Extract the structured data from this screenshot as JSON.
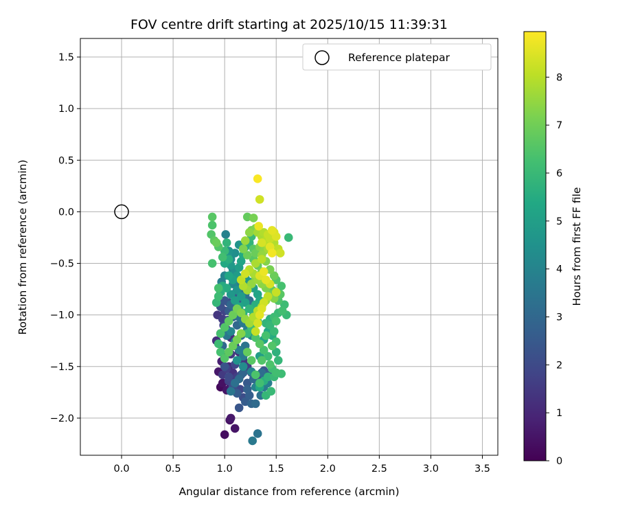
{
  "chart_data": {
    "type": "scatter",
    "title": "FOV centre drift starting at 2025/10/15 11:39:31",
    "xlabel": "Angular distance from reference (arcmin)",
    "ylabel": "Rotation from reference (arcmin)",
    "xlim": [
      -0.4,
      3.65
    ],
    "ylim": [
      -2.36,
      1.68
    ],
    "xticks": [
      "0.0",
      "0.5",
      "1.0",
      "1.5",
      "2.0",
      "2.5",
      "3.0",
      "3.5"
    ],
    "yticks": [
      "1.5",
      "1.0",
      "0.5",
      "0.0",
      "−0.5",
      "−1.0",
      "−1.5",
      "−2.0"
    ],
    "grid": true,
    "legend": {
      "label": "Reference platepar",
      "placement": "top-right"
    },
    "reference_point": {
      "x": 0.0,
      "y": 0.0
    },
    "colorbar": {
      "label": "Hours from first FF file",
      "range": [
        0,
        8.95
      ],
      "ticks": [
        "0",
        "1",
        "2",
        "3",
        "4",
        "5",
        "6",
        "7",
        "8"
      ],
      "colormap": "viridis"
    },
    "points": [
      [
        1.0,
        -2.16,
        0.3
      ],
      [
        1.05,
        -2.02,
        0.4
      ],
      [
        1.06,
        -2.0,
        0.6
      ],
      [
        1.1,
        -2.1,
        0.5
      ],
      [
        1.27,
        -2.22,
        3.6
      ],
      [
        1.32,
        -2.15,
        3.4
      ],
      [
        0.96,
        -1.7,
        0.2
      ],
      [
        0.98,
        -1.66,
        0.4
      ],
      [
        1.02,
        -1.73,
        0.5
      ],
      [
        1.06,
        -1.68,
        0.7
      ],
      [
        1.1,
        -1.64,
        0.9
      ],
      [
        0.94,
        -1.55,
        0.6
      ],
      [
        0.97,
        -1.45,
        0.8
      ],
      [
        1.0,
        -1.4,
        1.1
      ],
      [
        1.04,
        -1.5,
        1.0
      ],
      [
        1.08,
        -1.56,
        1.3
      ],
      [
        1.12,
        -1.6,
        1.6
      ],
      [
        1.15,
        -1.72,
        1.9
      ],
      [
        1.18,
        -1.8,
        2.1
      ],
      [
        1.14,
        -1.9,
        2.4
      ],
      [
        1.2,
        -1.84,
        2.6
      ],
      [
        1.26,
        -1.86,
        2.9
      ],
      [
        1.3,
        -1.86,
        3.1
      ],
      [
        1.24,
        -1.78,
        2.7
      ],
      [
        1.35,
        -1.78,
        3.3
      ],
      [
        1.38,
        -1.7,
        3.6
      ],
      [
        1.42,
        -1.66,
        3.8
      ],
      [
        1.36,
        -1.56,
        3.2
      ],
      [
        1.28,
        -1.62,
        3.0
      ],
      [
        1.22,
        -1.66,
        2.5
      ],
      [
        1.16,
        -1.58,
        2.2
      ],
      [
        1.1,
        -1.48,
        1.9
      ],
      [
        1.06,
        -1.38,
        1.5
      ],
      [
        0.92,
        -1.25,
        1.2
      ],
      [
        0.96,
        -1.18,
        1.6
      ],
      [
        0.99,
        -1.1,
        1.8
      ],
      [
        1.03,
        -1.05,
        2.0
      ],
      [
        0.93,
        -1.0,
        1.4
      ],
      [
        0.96,
        -0.92,
        2.2
      ],
      [
        1.0,
        -0.86,
        2.4
      ],
      [
        1.04,
        -0.96,
        2.6
      ],
      [
        1.08,
        -1.02,
        2.8
      ],
      [
        1.12,
        -1.1,
        3.0
      ],
      [
        1.16,
        -1.2,
        3.2
      ],
      [
        1.2,
        -1.3,
        3.4
      ],
      [
        1.18,
        -1.4,
        3.6
      ],
      [
        1.14,
        -1.34,
        3.8
      ],
      [
        1.1,
        -1.26,
        4.0
      ],
      [
        1.06,
        -1.16,
        4.1
      ],
      [
        1.02,
        -1.2,
        3.5
      ],
      [
        0.98,
        -1.3,
        3.0
      ],
      [
        1.0,
        -1.5,
        2.3
      ],
      [
        1.04,
        -1.6,
        2.0
      ],
      [
        1.08,
        -1.7,
        2.2
      ],
      [
        1.12,
        -1.76,
        2.6
      ],
      [
        1.22,
        -1.72,
        2.8
      ],
      [
        1.3,
        -1.7,
        3.9
      ],
      [
        1.26,
        -1.55,
        4.0
      ],
      [
        1.18,
        -1.5,
        4.3
      ],
      [
        1.12,
        -1.44,
        4.5
      ],
      [
        0.95,
        -0.75,
        4.2
      ],
      [
        0.97,
        -0.68,
        3.8
      ],
      [
        1.0,
        -0.62,
        4.0
      ],
      [
        1.02,
        -0.4,
        3.6
      ],
      [
        1.01,
        -0.22,
        3.9
      ],
      [
        1.04,
        -0.38,
        4.6
      ],
      [
        1.06,
        -0.52,
        4.8
      ],
      [
        1.1,
        -0.58,
        4.4
      ],
      [
        1.08,
        -0.7,
        4.2
      ],
      [
        1.12,
        -0.76,
        4.6
      ],
      [
        1.16,
        -0.82,
        4.9
      ],
      [
        1.2,
        -0.88,
        5.1
      ],
      [
        1.14,
        -0.92,
        5.3
      ],
      [
        1.1,
        -0.86,
        5.0
      ],
      [
        1.06,
        -0.8,
        4.7
      ],
      [
        1.02,
        -0.74,
        5.5
      ],
      [
        1.18,
        -0.98,
        5.6
      ],
      [
        1.24,
        -0.94,
        5.8
      ],
      [
        1.28,
        -1.0,
        5.9
      ],
      [
        1.32,
        -1.06,
        6.1
      ],
      [
        1.26,
        -1.12,
        6.2
      ],
      [
        1.22,
        -1.18,
        6.0
      ],
      [
        1.3,
        -1.22,
        6.4
      ],
      [
        1.34,
        -1.28,
        6.6
      ],
      [
        1.38,
        -1.34,
        6.3
      ],
      [
        1.42,
        -1.4,
        6.1
      ],
      [
        1.46,
        -1.3,
        6.5
      ],
      [
        1.5,
        -1.26,
        6.2
      ],
      [
        1.48,
        -1.16,
        6.0
      ],
      [
        1.44,
        -1.1,
        5.9
      ],
      [
        1.4,
        -1.2,
        6.3
      ],
      [
        1.36,
        -1.44,
        6.5
      ],
      [
        1.44,
        -1.48,
        6.4
      ],
      [
        1.5,
        -1.56,
        6.2
      ],
      [
        1.55,
        -1.57,
        6.1
      ],
      [
        1.48,
        -1.6,
        6.0
      ],
      [
        1.45,
        -1.74,
        6.0
      ],
      [
        1.4,
        -1.78,
        5.9
      ],
      [
        1.34,
        -1.66,
        6.2
      ],
      [
        1.3,
        -1.58,
        6.4
      ],
      [
        1.26,
        -1.44,
        6.6
      ],
      [
        1.22,
        -1.36,
        6.8
      ],
      [
        1.48,
        -1.02,
        6.1
      ],
      [
        1.5,
        -1.06,
        6.3
      ],
      [
        1.52,
        -0.98,
        6.0
      ],
      [
        1.56,
        -0.96,
        6.2
      ],
      [
        1.58,
        -0.9,
        6.1
      ],
      [
        1.6,
        -1.0,
        6.0
      ],
      [
        1.52,
        -0.86,
        6.4
      ],
      [
        1.54,
        -0.8,
        6.6
      ],
      [
        1.55,
        -0.72,
        6.3
      ],
      [
        1.5,
        -0.66,
        6.5
      ],
      [
        1.46,
        -0.76,
        6.7
      ],
      [
        1.62,
        -0.25,
        6.0
      ],
      [
        1.48,
        -0.62,
        6.9
      ],
      [
        1.44,
        -0.56,
        7.1
      ],
      [
        1.4,
        -0.48,
        7.3
      ],
      [
        1.36,
        -0.42,
        7.5
      ],
      [
        1.42,
        -0.36,
        7.7
      ],
      [
        1.48,
        -0.3,
        7.9
      ],
      [
        1.52,
        -0.36,
        8.1
      ],
      [
        1.54,
        -0.4,
        8.3
      ],
      [
        1.5,
        -0.24,
        8.5
      ],
      [
        1.46,
        -0.18,
        8.6
      ],
      [
        1.48,
        -0.2,
        8.4
      ],
      [
        1.44,
        -0.26,
        8.2
      ],
      [
        1.4,
        -0.3,
        8.0
      ],
      [
        1.36,
        -0.24,
        7.8
      ],
      [
        1.33,
        -0.14,
        8.7
      ],
      [
        1.34,
        0.12,
        8.3
      ],
      [
        1.32,
        0.32,
        8.9
      ],
      [
        1.3,
        -0.16,
        7.2
      ],
      [
        1.26,
        -0.18,
        7.0
      ],
      [
        1.22,
        -0.05,
        6.8
      ],
      [
        1.28,
        -0.06,
        7.1
      ],
      [
        1.24,
        -0.2,
        7.4
      ],
      [
        1.2,
        -0.28,
        7.6
      ],
      [
        1.18,
        -0.36,
        7.2
      ],
      [
        1.22,
        -0.42,
        6.9
      ],
      [
        1.28,
        -0.46,
        6.6
      ],
      [
        1.32,
        -0.52,
        6.8
      ],
      [
        1.36,
        -0.58,
        7.0
      ],
      [
        1.3,
        -0.64,
        7.3
      ],
      [
        1.26,
        -0.7,
        7.5
      ],
      [
        1.22,
        -0.76,
        7.7
      ],
      [
        1.18,
        -0.72,
        7.9
      ],
      [
        1.16,
        -0.66,
        8.1
      ],
      [
        1.2,
        -0.6,
        8.3
      ],
      [
        1.24,
        -0.56,
        8.0
      ],
      [
        1.28,
        -0.6,
        7.8
      ],
      [
        1.32,
        -0.66,
        7.6
      ],
      [
        1.36,
        -0.7,
        7.4
      ],
      [
        1.4,
        -0.74,
        7.2
      ],
      [
        1.44,
        -0.8,
        7.0
      ],
      [
        1.48,
        -0.84,
        7.3
      ],
      [
        1.4,
        -0.86,
        7.6
      ],
      [
        1.36,
        -0.92,
        7.8
      ],
      [
        1.32,
        -0.96,
        8.0
      ],
      [
        1.28,
        -1.02,
        7.9
      ],
      [
        1.24,
        -1.08,
        7.7
      ],
      [
        1.2,
        -1.04,
        7.5
      ],
      [
        1.16,
        -0.98,
        7.3
      ],
      [
        1.12,
        -0.94,
        7.1
      ],
      [
        1.08,
        -1.0,
        6.9
      ],
      [
        1.04,
        -1.06,
        6.7
      ],
      [
        1.0,
        -1.12,
        6.5
      ],
      [
        0.96,
        -1.18,
        6.3
      ],
      [
        0.94,
        -1.28,
        6.1
      ],
      [
        0.96,
        -1.36,
        6.3
      ],
      [
        1.0,
        -1.42,
        6.5
      ],
      [
        1.04,
        -1.36,
        6.7
      ],
      [
        1.08,
        -1.3,
        6.9
      ],
      [
        1.12,
        -1.24,
        7.1
      ],
      [
        1.16,
        -1.18,
        7.3
      ],
      [
        1.3,
        -1.16,
        8.2
      ],
      [
        1.32,
        -1.08,
        8.4
      ],
      [
        1.34,
        -1.0,
        8.6
      ],
      [
        1.36,
        -0.94,
        8.5
      ],
      [
        1.38,
        -0.88,
        8.3
      ],
      [
        1.42,
        -0.82,
        8.1
      ],
      [
        0.88,
        -0.05,
        6.6
      ],
      [
        0.88,
        -0.13,
        6.4
      ],
      [
        0.87,
        -0.22,
        6.5
      ],
      [
        0.9,
        -0.28,
        6.7
      ],
      [
        0.92,
        -0.3,
        6.9
      ],
      [
        0.88,
        -0.5,
        6.3
      ],
      [
        0.94,
        -0.34,
        6.5
      ],
      [
        0.98,
        -0.44,
        6.2
      ],
      [
        1.0,
        -0.38,
        6.0
      ],
      [
        1.02,
        -0.3,
        5.8
      ],
      [
        1.04,
        -0.46,
        5.6
      ],
      [
        1.0,
        -0.5,
        5.4
      ],
      [
        0.92,
        -0.88,
        5.9
      ],
      [
        0.94,
        -0.82,
        6.1
      ],
      [
        0.96,
        -0.78,
        5.7
      ],
      [
        0.98,
        -0.72,
        5.5
      ],
      [
        0.94,
        -0.74,
        6.3
      ],
      [
        1.04,
        -0.62,
        5.3
      ],
      [
        1.08,
        -0.66,
        5.1
      ],
      [
        1.12,
        -0.62,
        4.9
      ],
      [
        1.14,
        -0.54,
        5.0
      ],
      [
        1.16,
        -0.48,
        5.2
      ],
      [
        1.18,
        -0.42,
        5.4
      ],
      [
        1.2,
        -0.34,
        5.6
      ],
      [
        1.24,
        -0.3,
        5.8
      ],
      [
        1.26,
        -0.24,
        6.0
      ],
      [
        1.14,
        -0.32,
        4.6
      ],
      [
        1.1,
        -0.4,
        4.4
      ],
      [
        1.06,
        -0.46,
        4.2
      ],
      [
        1.08,
        -0.56,
        4.0
      ],
      [
        1.12,
        -0.7,
        3.8
      ],
      [
        1.16,
        -0.74,
        3.6
      ],
      [
        1.2,
        -0.8,
        3.4
      ],
      [
        1.24,
        -0.86,
        3.2
      ],
      [
        1.26,
        -0.92,
        3.0
      ],
      [
        1.3,
        -0.98,
        2.8
      ],
      [
        1.16,
        -0.88,
        2.6
      ],
      [
        1.12,
        -0.84,
        2.4
      ],
      [
        1.08,
        -0.8,
        2.2
      ],
      [
        1.04,
        -0.88,
        2.0
      ],
      [
        1.0,
        -0.96,
        1.8
      ],
      [
        0.98,
        -1.04,
        1.6
      ],
      [
        1.02,
        -1.14,
        1.4
      ],
      [
        1.06,
        -1.22,
        1.2
      ],
      [
        1.1,
        -1.3,
        1.0
      ],
      [
        1.14,
        -1.36,
        1.2
      ],
      [
        1.18,
        -1.44,
        1.4
      ],
      [
        1.22,
        -1.5,
        1.6
      ],
      [
        1.26,
        -1.56,
        1.8
      ],
      [
        1.3,
        -1.62,
        2.0
      ],
      [
        1.34,
        -1.58,
        2.2
      ],
      [
        1.38,
        -1.54,
        2.4
      ],
      [
        1.42,
        -1.58,
        2.6
      ],
      [
        1.18,
        -1.56,
        2.9
      ],
      [
        1.14,
        -1.62,
        3.1
      ],
      [
        1.1,
        -1.66,
        3.3
      ],
      [
        1.06,
        -1.74,
        3.5
      ],
      [
        1.04,
        -1.64,
        1.8
      ],
      [
        0.98,
        -1.58,
        1.5
      ],
      [
        1.02,
        -1.52,
        1.7
      ],
      [
        1.34,
        -1.4,
        5.0
      ],
      [
        1.38,
        -1.24,
        5.2
      ],
      [
        1.42,
        -1.16,
        5.4
      ],
      [
        1.44,
        -1.04,
        5.6
      ],
      [
        1.4,
        -1.08,
        5.8
      ],
      [
        1.46,
        -1.2,
        5.5
      ],
      [
        1.5,
        -1.36,
        5.7
      ],
      [
        1.52,
        -1.44,
        5.9
      ],
      [
        1.46,
        -1.52,
        6.1
      ],
      [
        1.42,
        -1.6,
        5.8
      ],
      [
        1.38,
        -1.64,
        5.6
      ],
      [
        1.34,
        -1.7,
        5.4
      ],
      [
        1.06,
        -0.9,
        3.0
      ],
      [
        1.1,
        -0.96,
        3.2
      ],
      [
        1.14,
        -1.02,
        3.4
      ],
      [
        1.18,
        -1.08,
        3.6
      ],
      [
        1.22,
        -1.14,
        3.8
      ],
      [
        1.26,
        -1.2,
        4.0
      ],
      [
        1.2,
        -0.64,
        4.6
      ],
      [
        1.24,
        -0.68,
        4.8
      ],
      [
        1.28,
        -0.74,
        5.0
      ],
      [
        1.32,
        -0.8,
        5.2
      ],
      [
        1.34,
        -0.86,
        5.4
      ],
      [
        1.3,
        -0.9,
        5.6
      ],
      [
        1.28,
        -0.36,
        6.6
      ],
      [
        1.3,
        -0.4,
        6.9
      ],
      [
        1.34,
        -0.34,
        7.2
      ],
      [
        1.38,
        -0.38,
        7.4
      ],
      [
        1.4,
        -0.28,
        8.0
      ],
      [
        1.36,
        -0.3,
        8.4
      ],
      [
        1.32,
        -0.2,
        7.7
      ],
      [
        1.38,
        -0.2,
        7.9
      ],
      [
        1.42,
        -0.22,
        8.2
      ],
      [
        1.44,
        -0.34,
        8.6
      ],
      [
        1.46,
        -0.4,
        8.8
      ],
      [
        1.38,
        -0.58,
        8.7
      ],
      [
        1.34,
        -0.62,
        8.5
      ],
      [
        1.4,
        -0.66,
        8.6
      ],
      [
        1.44,
        -0.7,
        8.4
      ],
      [
        1.5,
        -0.78,
        8.2
      ],
      [
        1.36,
        -0.46,
        8.0
      ],
      [
        1.3,
        -0.5,
        7.8
      ]
    ]
  }
}
